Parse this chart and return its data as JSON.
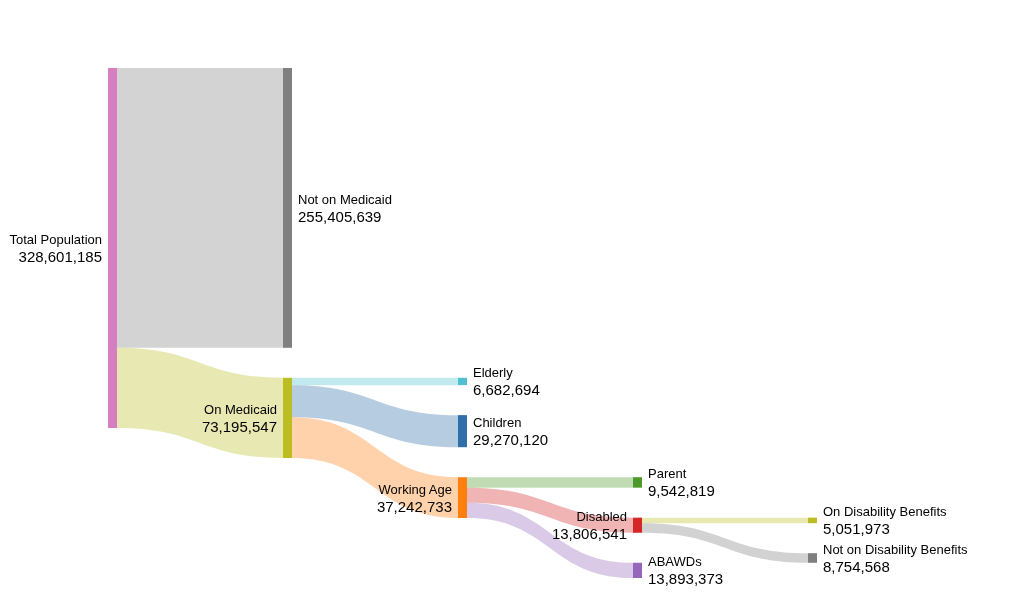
{
  "chart_data": {
    "type": "other",
    "categories": [
      "Total Population",
      "Not on Medicaid",
      "On Medicaid",
      "Elderly",
      "Children",
      "Working Age",
      "Parent",
      "Disabled",
      "ABAWDs",
      "On Disability Benefits",
      "Not on Disability Benefits"
    ],
    "values": [
      328601185,
      255405639,
      73195547,
      6682694,
      29270120,
      37242733,
      9542819,
      13806541,
      13893373,
      5051973,
      8754568
    ],
    "value_labels": [
      "328,601,185",
      "255,405,639",
      "73,195,547",
      "6,682,694",
      "29,270,120",
      "37,242,733",
      "9,542,819",
      "13,806,541",
      "13,893,373",
      "5,051,973",
      "8,754,568"
    ],
    "colors": [
      "#d67fc0",
      "#808080",
      "#bcbd22",
      "#4fc0cf",
      "#2f6ea8",
      "#ff7f0e",
      "#4c9a2a",
      "#d62728",
      "#9467bd",
      "#bcbd22",
      "#7f7f7f"
    ]
  }
}
